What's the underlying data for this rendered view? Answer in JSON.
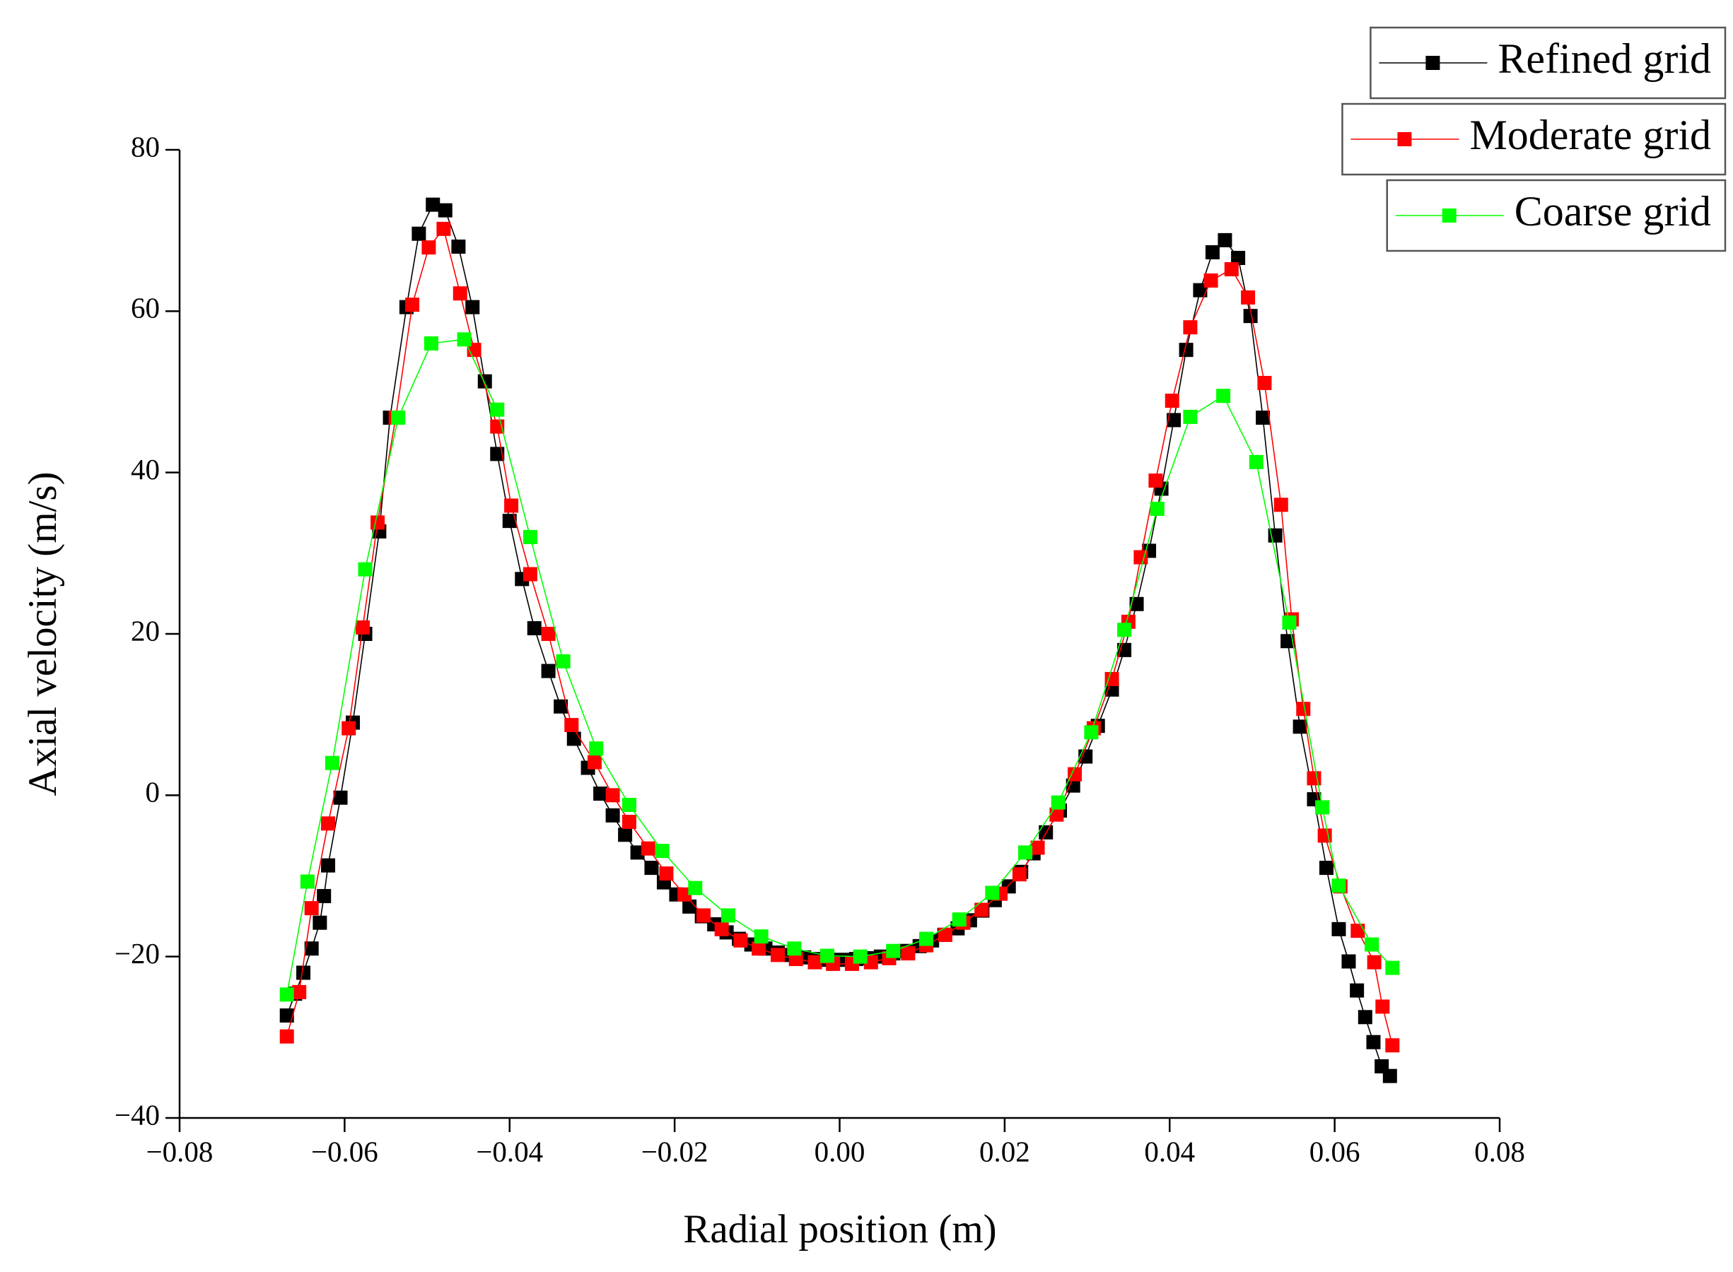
{
  "chart_data": {
    "type": "line",
    "xlabel": "Radial position (m)",
    "ylabel": "Axial velocity (m/s)",
    "xlim": [
      -0.08,
      0.08
    ],
    "ylim": [
      -40,
      80
    ],
    "xticks": [
      {
        "value": -0.08,
        "label": "−0.08"
      },
      {
        "value": -0.06,
        "label": "−0.06"
      },
      {
        "value": -0.04,
        "label": "−0.04"
      },
      {
        "value": -0.02,
        "label": "−0.02"
      },
      {
        "value": 0,
        "label": "0.00"
      },
      {
        "value": 0.02,
        "label": "0.02"
      },
      {
        "value": 0.04,
        "label": "0.04"
      },
      {
        "value": 0.06,
        "label": "0.06"
      },
      {
        "value": 0.08,
        "label": "0.08"
      }
    ],
    "yticks": [
      {
        "value": -40,
        "label": "−40"
      },
      {
        "value": -20,
        "label": "−20"
      },
      0,
      20,
      40,
      60,
      80
    ],
    "legend": "top-right",
    "series": [
      {
        "name": "Refined grid",
        "color": "#000000",
        "x": [
          -0.067,
          -0.066,
          -0.065,
          -0.064,
          -0.063,
          -0.0625,
          -0.062,
          -0.0605,
          -0.059,
          -0.0575,
          -0.0558,
          -0.0545,
          -0.0525,
          -0.051,
          -0.0493,
          -0.0478,
          -0.0462,
          -0.0445,
          -0.043,
          -0.0415,
          -0.04,
          -0.0385,
          -0.037,
          -0.0353,
          -0.0338,
          -0.0322,
          -0.0305,
          -0.029,
          -0.0275,
          -0.026,
          -0.0245,
          -0.0228,
          -0.0213,
          -0.0198,
          -0.0182,
          -0.0167,
          -0.0152,
          -0.0137,
          -0.0122,
          -0.0107,
          -0.009,
          -0.0075,
          -0.006,
          -0.0043,
          -0.0028,
          -0.0013,
          0.0003,
          0.002,
          0.0035,
          0.005,
          0.0065,
          0.008,
          0.0097,
          0.0112,
          0.0127,
          0.0143,
          0.0158,
          0.0173,
          0.0188,
          0.0205,
          0.022,
          0.0235,
          0.025,
          0.0267,
          0.0283,
          0.0298,
          0.0313,
          0.033,
          0.0345,
          0.036,
          0.0375,
          0.039,
          0.0405,
          0.042,
          0.0437,
          0.0452,
          0.0467,
          0.0483,
          0.0498,
          0.0513,
          0.0528,
          0.0543,
          0.0558,
          0.0575,
          0.059,
          0.0605,
          0.0617,
          0.0627,
          0.0637,
          0.0647,
          0.0657,
          0.0667
        ],
        "values": [
          -27.3,
          -24.6,
          -22,
          -19,
          -15.8,
          -12.5,
          -8.7,
          -0.3,
          9,
          20,
          32.7,
          46.8,
          60.5,
          69.6,
          73.2,
          72.5,
          68,
          60.5,
          51.3,
          42.3,
          34,
          26.8,
          20.7,
          15.4,
          11,
          7,
          3.4,
          0.2,
          -2.5,
          -4.9,
          -7.1,
          -9,
          -10.8,
          -12.3,
          -13.8,
          -15,
          -16,
          -17,
          -17.8,
          -18.5,
          -19,
          -19.5,
          -19.8,
          -20.1,
          -20.3,
          -20.4,
          -20.4,
          -20.3,
          -20.2,
          -20,
          -19.6,
          -19.3,
          -18.7,
          -18,
          -17.3,
          -16.5,
          -15.5,
          -14.3,
          -13,
          -11.3,
          -9.5,
          -7.2,
          -4.6,
          -1.9,
          1.2,
          4.8,
          8.6,
          13.1,
          18,
          23.7,
          30.3,
          38,
          46.5,
          55.2,
          62.6,
          67.3,
          68.8,
          66.6,
          59.4,
          46.8,
          32.2,
          19.1,
          8.5,
          -0.5,
          -9,
          -16.6,
          -20.6,
          -24.2,
          -27.5,
          -30.6,
          -33.6,
          -34.8
        ]
      },
      {
        "name": "Moderate grid",
        "color": "#ff0000",
        "x": [
          -0.067,
          -0.0655,
          -0.064,
          -0.062,
          -0.0595,
          -0.0578,
          -0.056,
          -0.0538,
          -0.0518,
          -0.0498,
          -0.048,
          -0.046,
          -0.0443,
          -0.0415,
          -0.0398,
          -0.0375,
          -0.0353,
          -0.0325,
          -0.0297,
          -0.0275,
          -0.0255,
          -0.0232,
          -0.021,
          -0.0188,
          -0.0165,
          -0.0143,
          -0.012,
          -0.0098,
          -0.0075,
          -0.0053,
          -0.003,
          -0.0008,
          0.0015,
          0.0038,
          0.006,
          0.0083,
          0.0105,
          0.0128,
          0.015,
          0.0172,
          0.0195,
          0.0218,
          0.024,
          0.0263,
          0.0285,
          0.0308,
          0.033,
          0.035,
          0.0365,
          0.0383,
          0.0403,
          0.0425,
          0.045,
          0.0475,
          0.0495,
          0.0515,
          0.0535,
          0.0548,
          0.0562,
          0.0575,
          0.0588,
          0.0607,
          0.0628,
          0.0648,
          0.0658,
          0.067
        ],
        "values": [
          -29.9,
          -24.4,
          -14,
          -3.5,
          8.3,
          20.8,
          33.8,
          46.8,
          60.8,
          67.9,
          70.2,
          62.2,
          55.2,
          45.7,
          35.9,
          27.4,
          20,
          8.7,
          4.1,
          0,
          -3.3,
          -6.6,
          -9.7,
          -12.3,
          -14.9,
          -16.6,
          -18,
          -19,
          -19.8,
          -20.3,
          -20.7,
          -20.9,
          -20.9,
          -20.7,
          -20.2,
          -19.6,
          -18.6,
          -17.3,
          -15.8,
          -14.2,
          -12.2,
          -9.8,
          -6.5,
          -2.4,
          2.6,
          8.3,
          14.4,
          21.5,
          29.5,
          39,
          48.9,
          58,
          63.8,
          65.2,
          61.7,
          51.1,
          36,
          21.8,
          10.7,
          2.1,
          -5,
          -11.3,
          -16.8,
          -20.7,
          -26.2,
          -31
        ]
      },
      {
        "name": "Coarse grid",
        "color": "#00ff00",
        "x": [
          -0.067,
          -0.0645,
          -0.0615,
          -0.0575,
          -0.0535,
          -0.0495,
          -0.0455,
          -0.0415,
          -0.0375,
          -0.0335,
          -0.0295,
          -0.0255,
          -0.0215,
          -0.0175,
          -0.0135,
          -0.0095,
          -0.0055,
          -0.0015,
          0.0025,
          0.0065,
          0.0105,
          0.0145,
          0.0185,
          0.0225,
          0.0265,
          0.0305,
          0.0345,
          0.0385,
          0.0425,
          0.0465,
          0.0505,
          0.0545,
          0.0585,
          0.0605,
          0.0645,
          0.067
        ],
        "values": [
          -24.7,
          -10.7,
          4,
          28,
          46.8,
          56,
          56.5,
          47.8,
          32,
          16.6,
          5.8,
          -1.2,
          -6.9,
          -11.5,
          -14.9,
          -17.5,
          -19,
          -19.9,
          -20,
          -19.3,
          -17.8,
          -15.4,
          -12.1,
          -7.1,
          -0.9,
          7.8,
          20.5,
          35.5,
          46.9,
          49.5,
          41.3,
          21.4,
          -1.5,
          -11.2,
          -18.5,
          -21.4
        ]
      }
    ]
  }
}
